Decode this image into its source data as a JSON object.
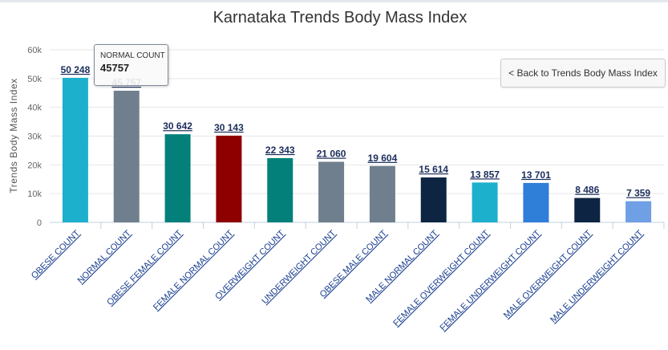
{
  "chart_data": {
    "type": "bar",
    "title": "Karnataka Trends Body Mass Index",
    "ylabel": "Trends Body Mass Index",
    "xlabel": "",
    "ylim": [
      0,
      60000
    ],
    "yticks": [
      "0",
      "10k",
      "20k",
      "30k",
      "40k",
      "50k",
      "60k"
    ],
    "grid": true,
    "legend": "none",
    "categories": [
      "OBESE COUNT",
      "NORMAL COUNT",
      "OBESE FEMALE COUNT",
      "FEMALE NORMAL COUNT",
      "OVERWEIGHT COUNT",
      "UNDERWEIGHT COUNT",
      "OBESE MALE COUNT",
      "MALE NORMAL COUNT",
      "FEMALE OVERWEIGHT COUNT",
      "FEMALE UNDERWEIGHT COUNT",
      "MALE OVERWEIGHT COUNT",
      "MALE UNDERWEIGHT COUNT"
    ],
    "values": [
      50248,
      45757,
      30642,
      30143,
      22343,
      21060,
      19604,
      15614,
      13857,
      13701,
      8486,
      7359
    ],
    "data_labels": [
      "50 248",
      "45 757",
      "30 642",
      "30 143",
      "22 343",
      "21 060",
      "19 604",
      "15 614",
      "13 857",
      "13 701",
      "8 486",
      "7 359"
    ],
    "colors": [
      "#1cb0cc",
      "#707f8e",
      "#03807a",
      "#8e0000",
      "#03807a",
      "#707f8e",
      "#707f8e",
      "#0d2542",
      "#1cb0cc",
      "#2f7ed8",
      "#0d2542",
      "#6f9fe4"
    ]
  },
  "back_button": {
    "label": "< Back to Trends Body Mass Index"
  },
  "tooltip": {
    "series": "NORMAL COUNT",
    "value": "45757",
    "category_index": 1
  }
}
